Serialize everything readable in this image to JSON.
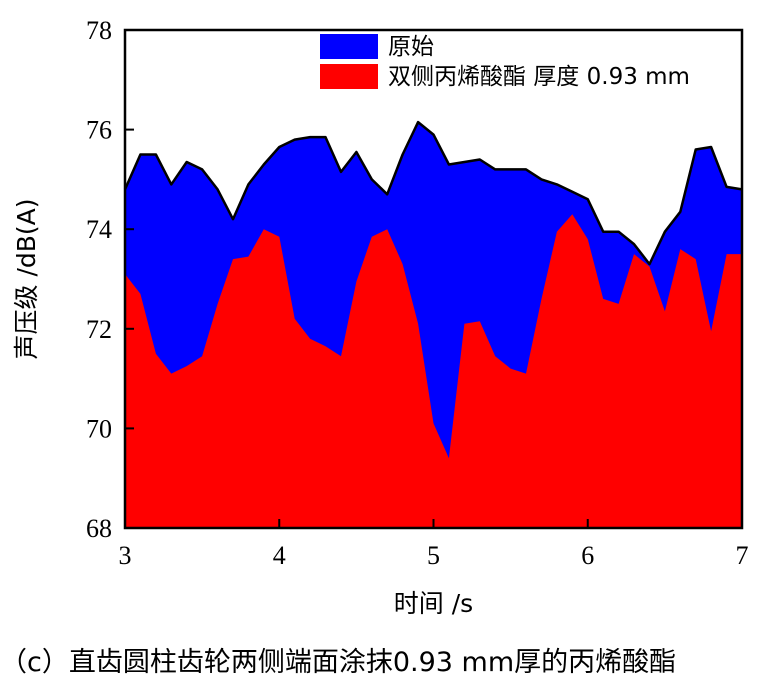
{
  "chart_data": {
    "type": "area",
    "xlabel": "时间 /s",
    "ylabel": "声压级 /dB(A)",
    "xlim": [
      3,
      7
    ],
    "ylim": [
      68,
      78
    ],
    "xticks": [
      3,
      4,
      5,
      6,
      7
    ],
    "yticks": [
      68,
      70,
      72,
      74,
      76,
      78
    ],
    "legend_position": "top-center",
    "grid": false,
    "series": [
      {
        "name": "原始",
        "color": "#0000ff",
        "x": [
          3.0,
          3.1,
          3.2,
          3.3,
          3.4,
          3.5,
          3.6,
          3.7,
          3.8,
          3.9,
          4.0,
          4.1,
          4.2,
          4.3,
          4.4,
          4.5,
          4.6,
          4.7,
          4.8,
          4.9,
          5.0,
          5.1,
          5.2,
          5.3,
          5.4,
          5.5,
          5.6,
          5.7,
          5.8,
          5.9,
          6.0,
          6.1,
          6.2,
          6.3,
          6.4,
          6.5,
          6.6,
          6.7,
          6.8,
          6.9,
          7.0
        ],
        "values": [
          74.8,
          75.5,
          75.5,
          74.9,
          75.35,
          75.2,
          74.8,
          74.2,
          74.9,
          75.3,
          75.65,
          75.8,
          75.85,
          75.85,
          75.15,
          75.55,
          75.0,
          74.7,
          75.5,
          76.15,
          75.9,
          75.3,
          75.35,
          75.4,
          75.2,
          75.2,
          75.2,
          75.0,
          74.9,
          74.75,
          74.6,
          73.95,
          73.95,
          73.7,
          73.3,
          73.95,
          74.35,
          75.6,
          75.65,
          74.85,
          74.8
        ]
      },
      {
        "name": "双侧丙烯酸酯  厚度 0.93 mm",
        "color": "#ff0000",
        "x": [
          3.0,
          3.1,
          3.2,
          3.3,
          3.4,
          3.5,
          3.6,
          3.7,
          3.8,
          3.9,
          4.0,
          4.1,
          4.2,
          4.3,
          4.4,
          4.5,
          4.6,
          4.7,
          4.8,
          4.9,
          5.0,
          5.1,
          5.2,
          5.3,
          5.4,
          5.5,
          5.6,
          5.7,
          5.8,
          5.9,
          6.0,
          6.1,
          6.2,
          6.3,
          6.4,
          6.5,
          6.6,
          6.7,
          6.8,
          6.9,
          7.0
        ],
        "values": [
          73.1,
          72.7,
          71.5,
          71.1,
          71.25,
          71.45,
          72.5,
          73.4,
          73.45,
          74.0,
          73.85,
          72.2,
          71.8,
          71.65,
          71.45,
          72.95,
          73.85,
          74.0,
          73.3,
          72.1,
          70.1,
          69.4,
          72.1,
          72.15,
          71.45,
          71.2,
          71.1,
          72.6,
          73.95,
          74.3,
          73.8,
          72.6,
          72.5,
          73.5,
          73.25,
          72.35,
          73.6,
          73.4,
          71.95,
          73.5,
          73.5
        ]
      }
    ]
  },
  "caption": "（c）直齿圆柱齿轮两侧端面涂抹0.93 mm厚的丙烯酸酯"
}
